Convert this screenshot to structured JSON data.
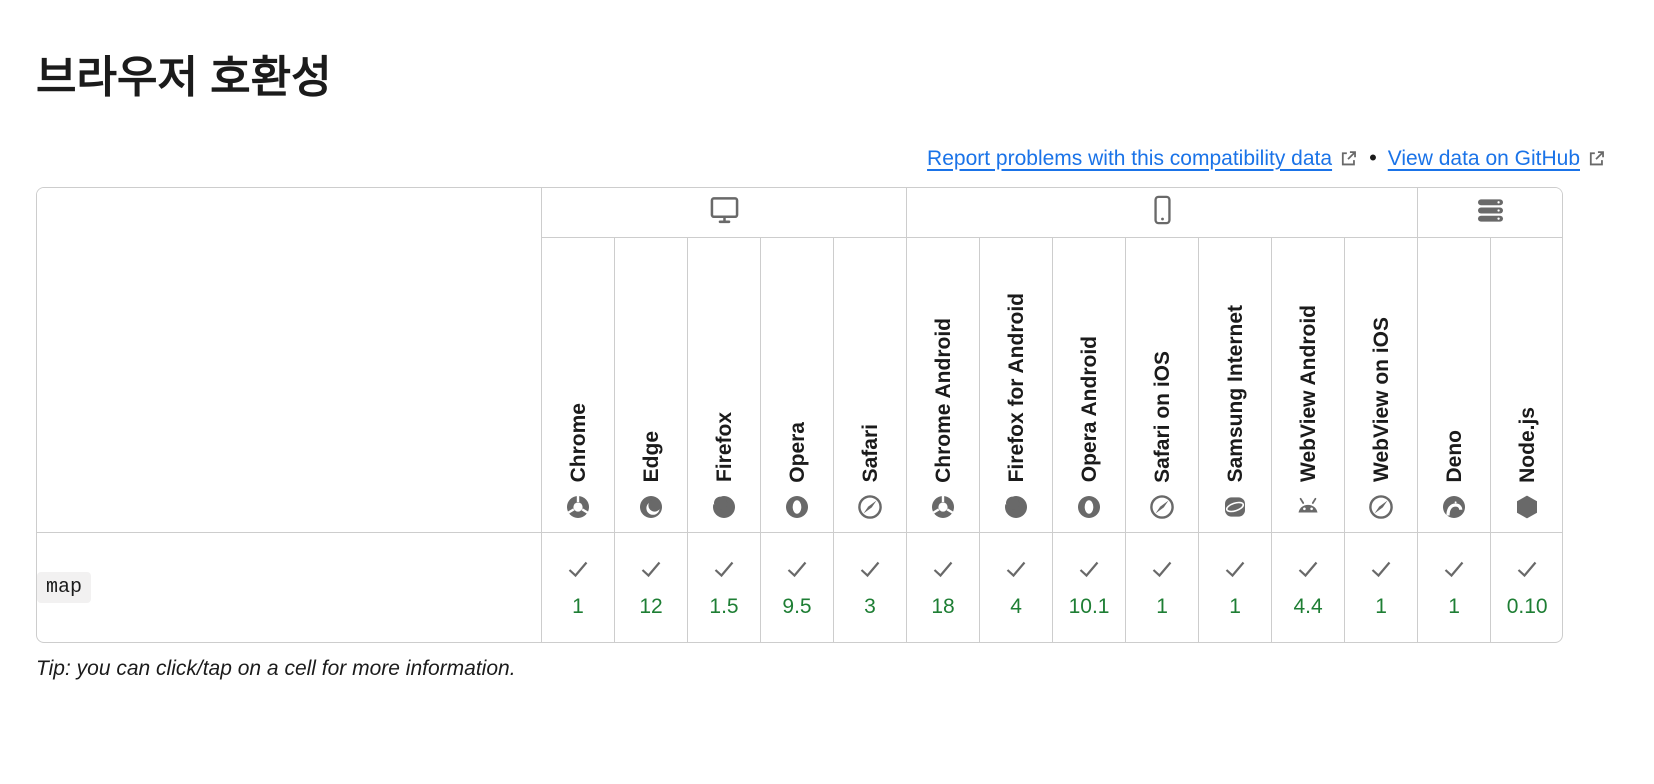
{
  "page": {
    "title": "브라우저 호환성",
    "tip": "Tip: you can click/tap on a cell for more information."
  },
  "links": {
    "report_label": "Report problems with this compatibility data",
    "separator": "•",
    "github_label": "View data on GitHub"
  },
  "compat_table": {
    "groups": [
      {
        "id": "desktop",
        "icon": "desktop-icon",
        "span": 5
      },
      {
        "id": "mobile",
        "icon": "mobile-icon",
        "span": 7
      },
      {
        "id": "server",
        "icon": "server-icon",
        "span": 2
      }
    ],
    "browsers": [
      {
        "label": "Chrome",
        "icon": "chrome-icon"
      },
      {
        "label": "Edge",
        "icon": "edge-icon"
      },
      {
        "label": "Firefox",
        "icon": "firefox-icon"
      },
      {
        "label": "Opera",
        "icon": "opera-icon"
      },
      {
        "label": "Safari",
        "icon": "safari-icon"
      },
      {
        "label": "Chrome Android",
        "icon": "chrome-icon"
      },
      {
        "label": "Firefox for Android",
        "icon": "firefox-icon"
      },
      {
        "label": "Opera Android",
        "icon": "opera-icon"
      },
      {
        "label": "Safari on iOS",
        "icon": "safari-icon"
      },
      {
        "label": "Samsung Internet",
        "icon": "samsung-internet-icon"
      },
      {
        "label": "WebView Android",
        "icon": "android-icon"
      },
      {
        "label": "WebView on iOS",
        "icon": "safari-icon"
      },
      {
        "label": "Deno",
        "icon": "deno-icon"
      },
      {
        "label": "Node.js",
        "icon": "nodejs-icon"
      }
    ],
    "rows": [
      {
        "feature": "map",
        "support": [
          {
            "status": "supported",
            "version": "1"
          },
          {
            "status": "supported",
            "version": "12"
          },
          {
            "status": "supported",
            "version": "1.5"
          },
          {
            "status": "supported",
            "version": "9.5"
          },
          {
            "status": "supported",
            "version": "3"
          },
          {
            "status": "supported",
            "version": "18"
          },
          {
            "status": "supported",
            "version": "4"
          },
          {
            "status": "supported",
            "version": "10.1"
          },
          {
            "status": "supported",
            "version": "1"
          },
          {
            "status": "supported",
            "version": "1"
          },
          {
            "status": "supported",
            "version": "4.4"
          },
          {
            "status": "supported",
            "version": "1"
          },
          {
            "status": "supported",
            "version": "1"
          },
          {
            "status": "supported",
            "version": "0.10"
          }
        ]
      }
    ]
  },
  "colors": {
    "link": "#1a73e8",
    "supported": "#1e7e34",
    "icon_gray": "#696969",
    "border": "#cdcdcd",
    "code_background": "#f2f1f1",
    "text": "#1b1b1b"
  }
}
